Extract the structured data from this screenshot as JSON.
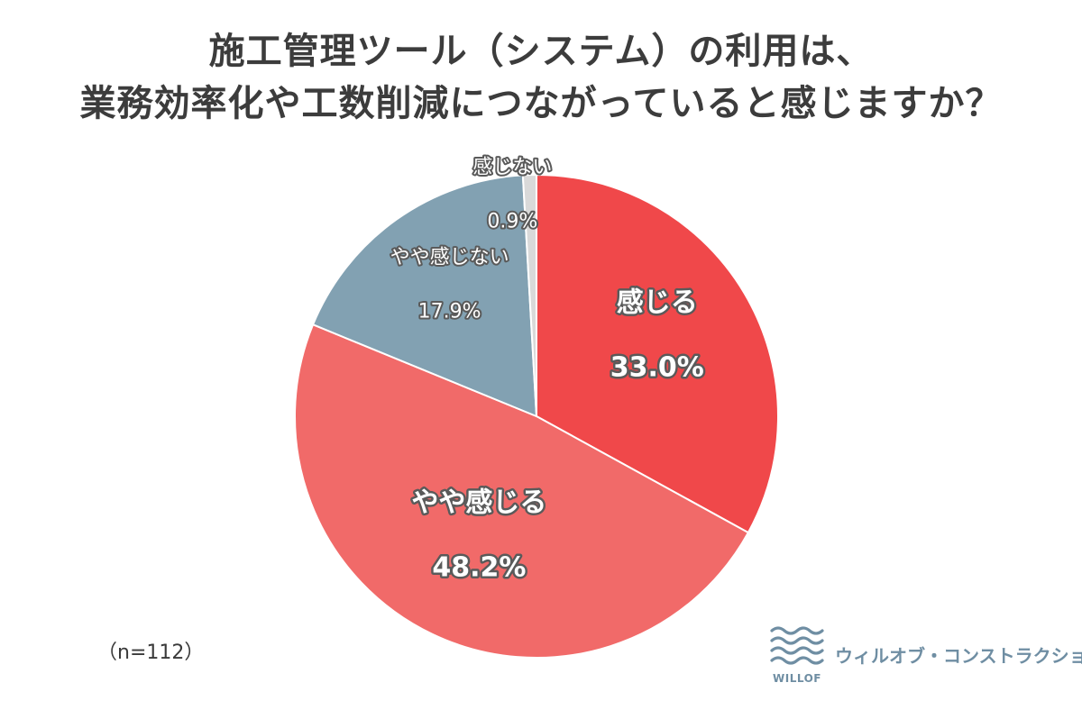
{
  "title_lines": [
    "施工管理ツール（システム）の利用は、",
    "業務効率化や工数削減につながっていると感じますか？"
  ],
  "sample_size": "（n=112）",
  "logo": {
    "word": "WILLOF",
    "name": "ウィルオブ・コンストラクション",
    "icon": "wave-lines-icon",
    "color": "#6f8ea3"
  },
  "chart_data": {
    "type": "pie",
    "title": "施工管理ツール（システム）の利用は、業務効率化や工数削減につながっていると感じますか？",
    "unit": "%",
    "slices": [
      {
        "name": "感じる",
        "value": 33.0,
        "label": "33.0%",
        "color": "#f0484a"
      },
      {
        "name": "やや感じる",
        "value": 48.2,
        "label": "48.2%",
        "color": "#f16a69"
      },
      {
        "name": "やや感じない",
        "value": 17.9,
        "label": "17.9%",
        "color": "#82a1b2"
      },
      {
        "name": "感じない",
        "value": 0.9,
        "label": "0.9%",
        "color": "#d9d9d9"
      }
    ],
    "start_angle_deg": 0,
    "direction": "clockwise",
    "legend": "none"
  }
}
